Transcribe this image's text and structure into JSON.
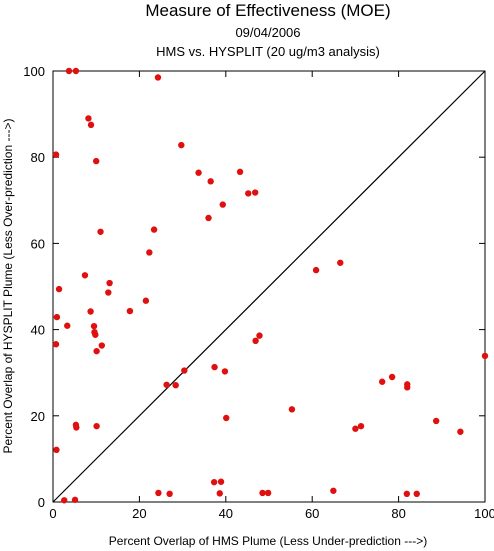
{
  "chart_data": {
    "type": "scatter",
    "title": "Measure of Effectiveness (MOE)",
    "subtitle": "09/04/2006",
    "subtitle2": "HMS vs. HYSPLIT  (20 ug/m3 analysis)",
    "xlabel": "Percent Overlap of HMS Plume (Less Under-prediction --->)",
    "ylabel": "Percent Overlap of HYSPLIT Plume (Less Over-prediction --->)",
    "xlim": [
      0,
      100
    ],
    "ylim": [
      0,
      100
    ],
    "xticks": [
      0,
      20,
      40,
      60,
      80,
      100
    ],
    "yticks": [
      0,
      20,
      40,
      60,
      80,
      100
    ],
    "grid": false,
    "reference_line": {
      "from": [
        0,
        0
      ],
      "to": [
        100,
        100
      ]
    },
    "point_color": "#e01010",
    "points": [
      [
        3.7,
        100
      ],
      [
        5.3,
        100
      ],
      [
        24.3,
        98.5
      ],
      [
        8.2,
        89
      ],
      [
        8.8,
        87.5
      ],
      [
        29.7,
        82.8
      ],
      [
        0.7,
        80.6
      ],
      [
        10.0,
        79.1
      ],
      [
        33.7,
        76.4
      ],
      [
        43.3,
        76.6
      ],
      [
        36.5,
        74.4
      ],
      [
        45.2,
        71.6
      ],
      [
        46.8,
        71.8
      ],
      [
        39.3,
        69
      ],
      [
        36,
        65.9
      ],
      [
        11,
        62.7
      ],
      [
        23.4,
        63.2
      ],
      [
        22.3,
        57.9
      ],
      [
        66.5,
        55.5
      ],
      [
        60.9,
        53.8
      ],
      [
        7.4,
        52.6
      ],
      [
        13.1,
        50.8
      ],
      [
        1.4,
        49.4
      ],
      [
        12.8,
        48.6
      ],
      [
        21.5,
        46.7
      ],
      [
        17.8,
        44.3
      ],
      [
        8.7,
        44.2
      ],
      [
        0.9,
        42.9
      ],
      [
        3.3,
        40.9
      ],
      [
        9.5,
        40.8
      ],
      [
        9.6,
        39.4
      ],
      [
        9.8,
        38.8
      ],
      [
        47.8,
        38.6
      ],
      [
        46.9,
        37.4
      ],
      [
        0.7,
        36.6
      ],
      [
        11.3,
        36.3
      ],
      [
        10.1,
        35
      ],
      [
        100,
        33.9
      ],
      [
        37.4,
        31.3
      ],
      [
        39.8,
        30.3
      ],
      [
        30.4,
        30.5
      ],
      [
        26.3,
        27.2
      ],
      [
        28.4,
        27.1
      ],
      [
        78.5,
        29
      ],
      [
        76.2,
        27.9
      ],
      [
        82,
        27.3
      ],
      [
        82,
        26.6
      ],
      [
        55.3,
        21.5
      ],
      [
        40.1,
        19.5
      ],
      [
        88.7,
        18.8
      ],
      [
        5.3,
        17.9
      ],
      [
        5.4,
        17.3
      ],
      [
        10.1,
        17.6
      ],
      [
        71.3,
        17.6
      ],
      [
        70,
        17
      ],
      [
        94.3,
        16.3
      ],
      [
        0.8,
        12.1
      ],
      [
        37.3,
        4.6
      ],
      [
        38.9,
        4.7
      ],
      [
        24.4,
        2.1
      ],
      [
        27,
        1.9
      ],
      [
        38.6,
        2
      ],
      [
        48.5,
        2.1
      ],
      [
        49.8,
        2.1
      ],
      [
        64.9,
        2.6
      ],
      [
        81.9,
        1.9
      ],
      [
        84.2,
        1.9
      ],
      [
        2.6,
        0.4
      ],
      [
        5.1,
        0.5
      ]
    ]
  }
}
